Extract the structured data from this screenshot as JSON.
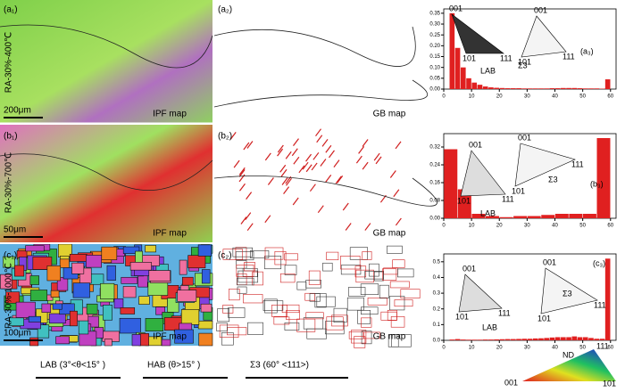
{
  "chart_data": [
    {
      "type": "histogram",
      "color": "#e02020",
      "bins": [
        2,
        4,
        6,
        8,
        10,
        12,
        14,
        16,
        18,
        20,
        22,
        24,
        26,
        28,
        30,
        32,
        34,
        36,
        38,
        40,
        42,
        44,
        46,
        48,
        50,
        52,
        54,
        56,
        58,
        60
      ],
      "values": [
        0.35,
        0.19,
        0.1,
        0.05,
        0.03,
        0.02,
        0.012,
        0.008,
        0.006,
        0.005,
        0.004,
        0.004,
        0.004,
        0.003,
        0.003,
        0.003,
        0.003,
        0.003,
        0.004,
        0.004,
        0.005,
        0.005,
        0.005,
        0.004,
        0.003,
        0.003,
        0.003,
        0.002,
        0.045
      ],
      "xlim": [
        0,
        62
      ],
      "xticks": [
        0,
        10,
        20,
        30,
        40,
        50,
        60
      ],
      "ylim": [
        0,
        0.37
      ],
      "yticks": [
        {
          "value": 0,
          "label": "0.00"
        },
        {
          "value": 0.05,
          "label": "0.05"
        },
        {
          "value": 0.1,
          "label": "0.10"
        },
        {
          "value": 0.15,
          "label": "0.15"
        },
        {
          "value": 0.2,
          "label": "0.20"
        },
        {
          "value": 0.25,
          "label": "0.25"
        },
        {
          "value": 0.3,
          "label": "0.30"
        },
        {
          "value": 0.35,
          "label": "0.35"
        }
      ],
      "annotations": [
        "001",
        "101",
        "111",
        "LAB",
        "001",
        "101",
        "111",
        "Σ3",
        "(a₃)"
      ]
    },
    {
      "type": "histogram",
      "color": "#e02020",
      "bins": [
        0,
        5,
        10,
        15,
        20,
        25,
        30,
        35,
        40,
        45,
        50,
        55,
        60
      ],
      "values": [
        0.31,
        0.13,
        0.02,
        0.01,
        0.005,
        0.01,
        0.01,
        0.015,
        0.02,
        0.02,
        0.02,
        0.36
      ],
      "xlim": [
        0,
        62
      ],
      "xticks": [
        0,
        10,
        20,
        30,
        40,
        50,
        60
      ],
      "ylim": [
        0,
        0.38
      ],
      "yticks": [
        {
          "value": 0,
          "label": "0.00"
        },
        {
          "value": 0.08,
          "label": "0.08"
        },
        {
          "value": 0.16,
          "label": "0.16"
        },
        {
          "value": 0.24,
          "label": "0.24"
        },
        {
          "value": 0.32,
          "label": "0.32"
        }
      ],
      "annotations": [
        "001",
        "101",
        "111",
        "LAB",
        "001",
        "101",
        "111",
        "Σ3",
        "(b₃)"
      ]
    },
    {
      "type": "histogram",
      "color": "#e02020",
      "bins": [
        2,
        4,
        6,
        8,
        10,
        12,
        14,
        16,
        18,
        20,
        22,
        24,
        26,
        28,
        30,
        32,
        34,
        36,
        38,
        40,
        42,
        44,
        46,
        48,
        50,
        52,
        54,
        56,
        58,
        60
      ],
      "values": [
        0.005,
        0.008,
        0.005,
        0.004,
        0.004,
        0.004,
        0.005,
        0.005,
        0.006,
        0.007,
        0.008,
        0.008,
        0.009,
        0.01,
        0.01,
        0.012,
        0.013,
        0.015,
        0.018,
        0.02,
        0.02,
        0.02,
        0.025,
        0.02,
        0.02,
        0.015,
        0.01,
        0.01,
        0.52
      ],
      "xlim": [
        0,
        62
      ],
      "xticks": [
        0,
        10,
        20,
        30,
        40,
        50,
        60
      ],
      "ylim": [
        0,
        0.55
      ],
      "yticks": [
        {
          "value": 0,
          "label": "0.0"
        },
        {
          "value": 0.1,
          "label": "0.1"
        },
        {
          "value": 0.2,
          "label": "0.2"
        },
        {
          "value": 0.3,
          "label": "0.3"
        },
        {
          "value": 0.4,
          "label": "0.4"
        },
        {
          "value": 0.5,
          "label": "0.5"
        }
      ],
      "annotations": [
        "001",
        "101",
        "111",
        "LAB",
        "001",
        "101",
        "111",
        "Σ3",
        "(c₃)"
      ]
    }
  ],
  "row_labels": [
    "RA-30%-400℃",
    "RA-30%-700℃",
    "RA-30%-1000℃"
  ],
  "panels": [
    {
      "ipf_label": "(a₁)",
      "ipf_text": "IPF  map",
      "scale": "200μm",
      "gb_label": "(a₂)",
      "gb_text": "GB  map"
    },
    {
      "ipf_label": "(b₁)",
      "ipf_text": "IPF  map",
      "scale": "50μm",
      "gb_label": "(b₂)",
      "gb_text": "GB  map"
    },
    {
      "ipf_label": "(c₁)",
      "ipf_text": "IPF  map",
      "scale": "100μm",
      "gb_label": "(c₂)",
      "gb_text": "GB  map"
    }
  ],
  "legend": [
    "LAB (3°<θ<15° )",
    "HAB (θ>15° )",
    "Σ3 (60°  <111>)"
  ],
  "color_key": {
    "title": "ND",
    "labels": [
      "001",
      "101",
      "111"
    ]
  }
}
